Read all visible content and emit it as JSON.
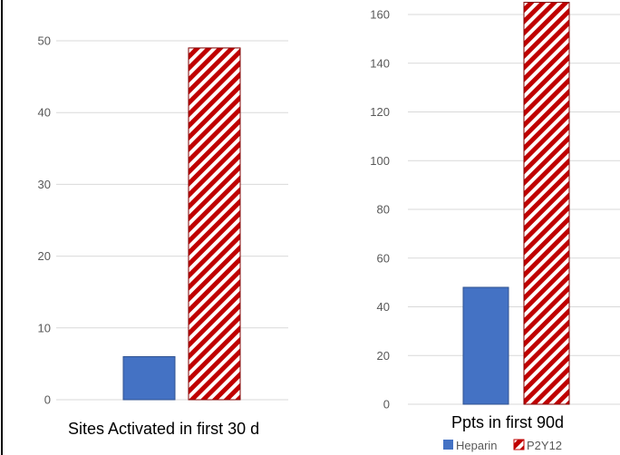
{
  "chart_data": [
    {
      "type": "bar",
      "categories": [
        "Heparin",
        "P2Y12"
      ],
      "values": [
        6,
        49
      ],
      "caption": "Sites Activated in first 30 d",
      "ylim": [
        0,
        50
      ],
      "yticks": [
        "0",
        "10",
        "20",
        "30",
        "40",
        "50"
      ],
      "grid": true
    },
    {
      "type": "bar",
      "categories": [
        "Heparin",
        "P2Y12"
      ],
      "values": [
        48,
        165
      ],
      "caption": "Ppts in first 90d",
      "ylim": [
        0,
        160
      ],
      "yticks": [
        "0",
        "20",
        "40",
        "60",
        "80",
        "100",
        "120",
        "140",
        "160"
      ],
      "grid": true,
      "legend": {
        "position": "bottom",
        "entries": [
          "Heparin",
          "P2Y12"
        ]
      }
    }
  ],
  "colors": {
    "heparin": "#4472C4",
    "p2y12_stripe": "#C00000",
    "grid": "#D9D9D9",
    "axis_line": "#000000"
  }
}
